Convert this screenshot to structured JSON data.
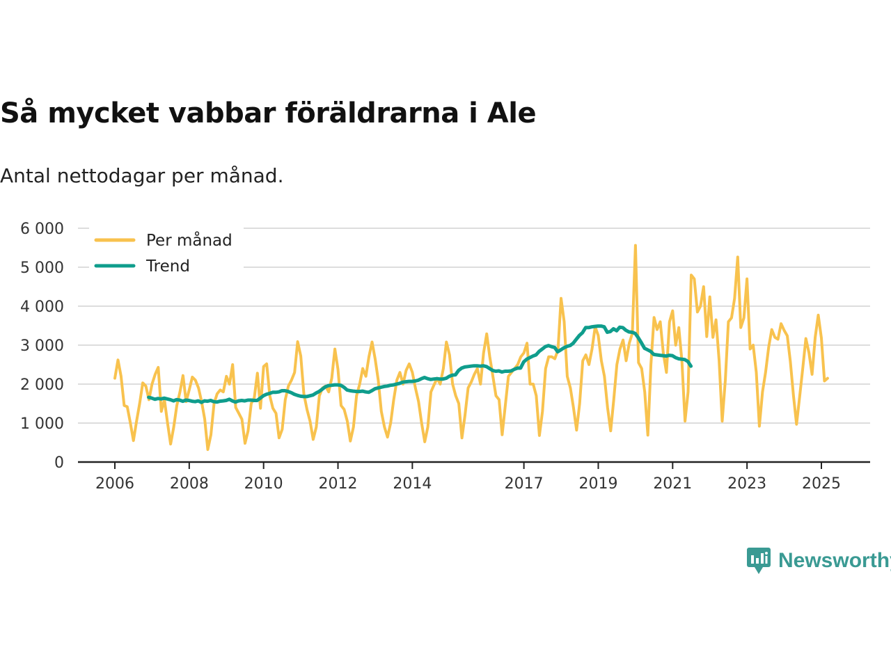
{
  "header": {
    "title": "Så mycket vabbar föräldrarna i Ale",
    "subtitle": "Antal nettodagar per månad."
  },
  "brand": {
    "name": "Newsworthy",
    "icon": "newsworthy-logo-icon"
  },
  "colors": {
    "monthly": "#f8c24e",
    "trend": "#0f9d8c",
    "grid": "#dddddd",
    "axis": "#222222",
    "brand": "#3a9a93"
  },
  "chart_data": {
    "type": "line",
    "title": "Så mycket vabbar föräldrarna i Ale",
    "subtitle": "Antal nettodagar per månad.",
    "xlabel": "",
    "ylabel": "",
    "ylim": [
      0,
      6000
    ],
    "xlim": [
      2006,
      2025.6
    ],
    "y_ticks": [
      0,
      1000,
      2000,
      3000,
      4000,
      5000,
      6000
    ],
    "y_tick_labels": [
      "0",
      "1 000",
      "2 000",
      "3 000",
      "4 000",
      "5 000",
      "6 000"
    ],
    "x_ticks": [
      2006,
      2008,
      2010,
      2012,
      2014,
      2017,
      2019,
      2021,
      2023,
      2025
    ],
    "x_tick_labels": [
      "2006",
      "2008",
      "2010",
      "2012",
      "2014",
      "2017",
      "2019",
      "2021",
      "2023",
      "2025"
    ],
    "grid": true,
    "legend": "top-left",
    "series": [
      {
        "name": "Per månad",
        "start": 2006.0,
        "step": 0.08333,
        "values": [
          2150,
          2620,
          2200,
          1450,
          1420,
          1000,
          550,
          1050,
          1500,
          2030,
          1950,
          1600,
          2000,
          2250,
          2430,
          1300,
          1600,
          1000,
          460,
          900,
          1450,
          1800,
          2220,
          1550,
          1850,
          2180,
          2100,
          1900,
          1550,
          1100,
          320,
          700,
          1500,
          1750,
          1850,
          1800,
          2200,
          2000,
          2500,
          1400,
          1250,
          1100,
          480,
          800,
          1500,
          1650,
          2280,
          1380,
          2450,
          2520,
          1700,
          1380,
          1250,
          620,
          840,
          1600,
          1950,
          2100,
          2300,
          3090,
          2720,
          1750,
          1350,
          1050,
          580,
          900,
          1700,
          1900,
          1950,
          1800,
          2150,
          2900,
          2380,
          1450,
          1350,
          1050,
          540,
          900,
          1700,
          2000,
          2400,
          2200,
          2700,
          3080,
          2650,
          2100,
          1300,
          900,
          640,
          1000,
          1600,
          2100,
          2300,
          2000,
          2350,
          2520,
          2300,
          1900,
          1550,
          1000,
          520,
          900,
          1800,
          1980,
          2150,
          2000,
          2400,
          3080,
          2750,
          2000,
          1700,
          1500,
          620,
          1200,
          1900,
          2050,
          2250,
          2400,
          2000,
          2800,
          3290,
          2700,
          2200,
          1700,
          1600,
          700,
          1450,
          2200,
          2300,
          2400,
          2500,
          2700,
          2800,
          3050,
          2000,
          2000,
          1700,
          680,
          1300,
          2400,
          2700,
          2700,
          2650,
          2880,
          4200,
          3600,
          2200,
          1900,
          1400,
          820,
          1500,
          2600,
          2750,
          2500,
          2900,
          3470,
          3250,
          2600,
          2200,
          1400,
          800,
          1600,
          2500,
          2900,
          3130,
          2600,
          3050,
          3300,
          5560,
          2550,
          2400,
          1800,
          690,
          2500,
          3710,
          3400,
          3600,
          2800,
          2300,
          3600,
          3880,
          3000,
          3450,
          2600,
          1050,
          1800,
          4800,
          4700,
          3850,
          4000,
          4500,
          3220,
          4240,
          3200,
          3650,
          2600,
          1050,
          2100,
          3600,
          3700,
          4200,
          5260,
          3450,
          3700,
          4700,
          2900,
          3000,
          2300,
          920,
          1800,
          2300,
          2950,
          3400,
          3200,
          3150,
          3550,
          3380,
          3240,
          2580,
          1700,
          970,
          1680,
          2400,
          3170,
          2800,
          2250,
          3200,
          3770,
          3180,
          2080,
          2150
        ]
      },
      {
        "name": "Trend",
        "start": 2006.91,
        "step": 0.08333,
        "values": [
          1660,
          1640,
          1610,
          1630,
          1620,
          1640,
          1620,
          1600,
          1570,
          1600,
          1590,
          1560,
          1590,
          1580,
          1560,
          1550,
          1570,
          1530,
          1570,
          1560,
          1580,
          1550,
          1540,
          1560,
          1570,
          1580,
          1610,
          1570,
          1540,
          1570,
          1580,
          1570,
          1590,
          1590,
          1580,
          1580,
          1640,
          1700,
          1740,
          1760,
          1790,
          1790,
          1800,
          1830,
          1830,
          1810,
          1780,
          1740,
          1710,
          1690,
          1680,
          1680,
          1700,
          1720,
          1770,
          1810,
          1870,
          1930,
          1960,
          1970,
          1980,
          1980,
          1970,
          1920,
          1850,
          1830,
          1820,
          1810,
          1810,
          1820,
          1800,
          1790,
          1830,
          1880,
          1900,
          1920,
          1940,
          1950,
          1970,
          1980,
          2000,
          2020,
          2050,
          2060,
          2070,
          2070,
          2080,
          2100,
          2140,
          2170,
          2140,
          2120,
          2130,
          2140,
          2130,
          2130,
          2150,
          2200,
          2230,
          2240,
          2350,
          2410,
          2440,
          2450,
          2460,
          2470,
          2470,
          2460,
          2470,
          2450,
          2400,
          2350,
          2330,
          2340,
          2310,
          2330,
          2330,
          2340,
          2380,
          2410,
          2410,
          2570,
          2640,
          2680,
          2720,
          2750,
          2840,
          2900,
          2960,
          2990,
          2960,
          2940,
          2830,
          2880,
          2930,
          2970,
          2990,
          3050,
          3150,
          3250,
          3320,
          3450,
          3450,
          3470,
          3480,
          3490,
          3490,
          3470,
          3330,
          3350,
          3420,
          3370,
          3460,
          3450,
          3380,
          3340,
          3330,
          3300,
          3190,
          3060,
          2920,
          2880,
          2840,
          2760,
          2750,
          2740,
          2730,
          2720,
          2740,
          2730,
          2680,
          2650,
          2640,
          2630,
          2580,
          2460
        ]
      }
    ]
  }
}
